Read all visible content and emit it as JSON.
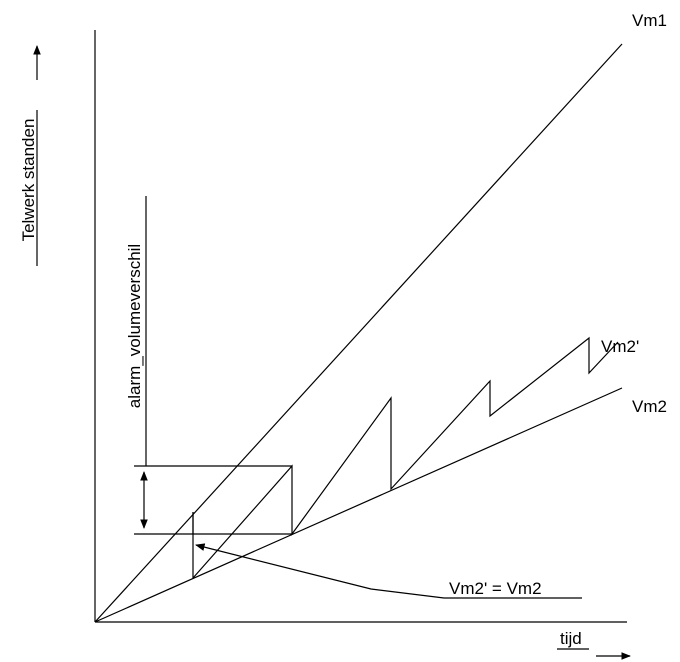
{
  "labels": {
    "y_axis": "Telwerk standen",
    "x_axis": "tijd",
    "vm1": "Vm1",
    "vm2_prime": "Vm2'",
    "vm2": "Vm2",
    "alarm": "alarm_volumeverschil",
    "equality": "Vm2' = Vm2"
  },
  "colors": {
    "line": "#000000",
    "background": "#ffffff"
  }
}
